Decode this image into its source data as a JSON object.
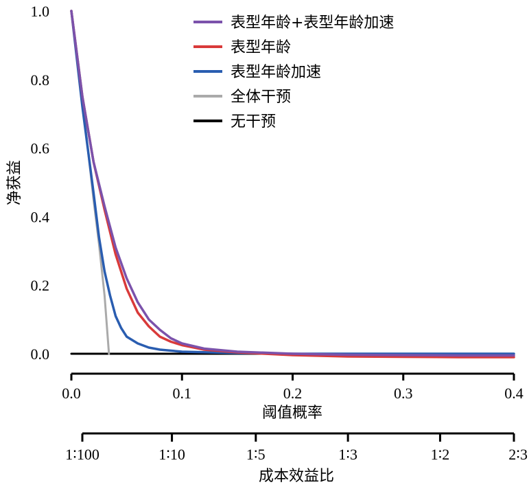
{
  "chart_data": {
    "type": "line",
    "ylabel": "净获益",
    "xlabel": "阈值概率",
    "secondary_xlabel": "成本效益比",
    "xlim": [
      0.0,
      0.4
    ],
    "ylim": [
      0.0,
      1.0
    ],
    "x_ticks": [
      "0.0",
      "0.1",
      "0.2",
      "0.3",
      "0.4"
    ],
    "y_ticks": [
      "0.0",
      "0.2",
      "0.4",
      "0.6",
      "0.8",
      "1.0"
    ],
    "secondary_ticks": [
      {
        "label": "1∶100",
        "x": 0.0099
      },
      {
        "label": "1∶10",
        "x": 0.0909
      },
      {
        "label": "1∶5",
        "x": 0.1667
      },
      {
        "label": "1∶3",
        "x": 0.25
      },
      {
        "label": "1∶2",
        "x": 0.3333
      },
      {
        "label": "2∶3",
        "x": 0.4
      }
    ],
    "legend_position": "top-right",
    "series": [
      {
        "name": "表型年龄+表型年龄加速",
        "color": "#7b52ab",
        "x": [
          0.0,
          0.01,
          0.02,
          0.03,
          0.04,
          0.05,
          0.06,
          0.07,
          0.08,
          0.09,
          0.1,
          0.12,
          0.15,
          0.2,
          0.25,
          0.3,
          0.35,
          0.4
        ],
        "y": [
          1.0,
          0.75,
          0.56,
          0.43,
          0.31,
          0.22,
          0.15,
          0.1,
          0.07,
          0.045,
          0.03,
          0.015,
          0.006,
          0.0,
          -0.003,
          -0.004,
          -0.005,
          -0.005
        ]
      },
      {
        "name": "表型年龄",
        "color": "#d93a3a",
        "x": [
          0.0,
          0.01,
          0.02,
          0.03,
          0.04,
          0.05,
          0.06,
          0.07,
          0.08,
          0.09,
          0.1,
          0.12,
          0.15,
          0.2,
          0.25,
          0.3,
          0.35,
          0.4
        ],
        "y": [
          1.0,
          0.75,
          0.56,
          0.42,
          0.29,
          0.19,
          0.12,
          0.08,
          0.05,
          0.035,
          0.025,
          0.012,
          0.004,
          -0.004,
          -0.008,
          -0.009,
          -0.01,
          -0.01
        ]
      },
      {
        "name": "表型年龄加速",
        "color": "#2a5db0",
        "x": [
          0.0,
          0.01,
          0.02,
          0.025,
          0.03,
          0.035,
          0.04,
          0.045,
          0.05,
          0.06,
          0.07,
          0.08,
          0.1,
          0.15,
          0.2,
          0.3,
          0.4
        ],
        "y": [
          1.0,
          0.72,
          0.47,
          0.34,
          0.24,
          0.17,
          0.11,
          0.075,
          0.05,
          0.03,
          0.018,
          0.012,
          0.006,
          0.002,
          0.0,
          0.0,
          0.0
        ]
      },
      {
        "name": "全体干预",
        "color": "#aaaaaa",
        "x": [
          0.0,
          0.01,
          0.02,
          0.025,
          0.03,
          0.034
        ],
        "y": [
          1.0,
          0.74,
          0.45,
          0.32,
          0.17,
          0.0
        ]
      },
      {
        "name": "无干预",
        "color": "#000000",
        "x": [
          0.0,
          0.4
        ],
        "y": [
          0.0,
          0.0
        ]
      }
    ]
  }
}
